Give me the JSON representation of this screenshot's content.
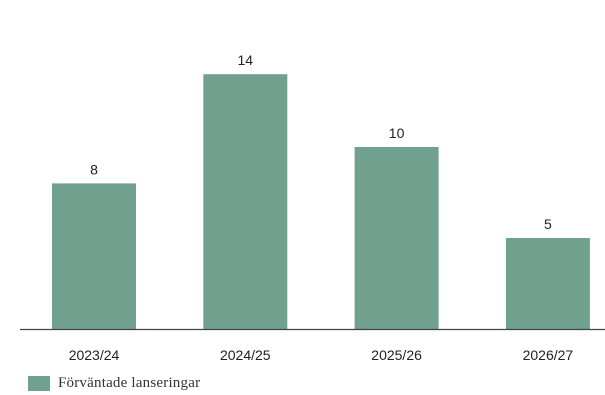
{
  "chart_data": {
    "type": "bar",
    "categories": [
      "2023/24",
      "2024/25",
      "2025/26",
      "2026/27"
    ],
    "series": [
      {
        "name": "Förväntade lanseringar",
        "values": [
          8,
          14,
          10,
          5
        ]
      }
    ],
    "ylim": [
      0,
      16
    ],
    "grid": false,
    "legend_position": "bottom-left",
    "bar_color": "#70a18e",
    "axis_color": "#444444"
  }
}
